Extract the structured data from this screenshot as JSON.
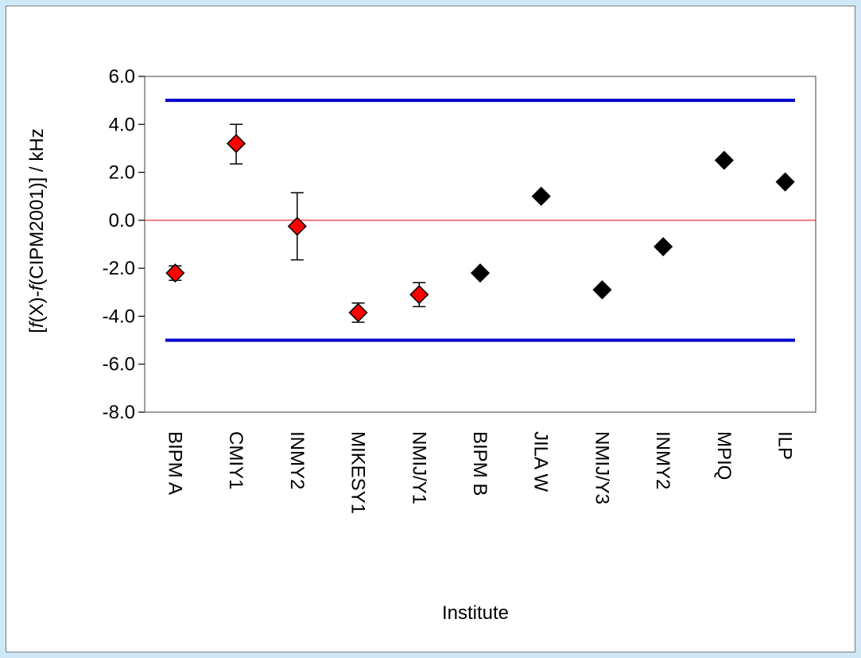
{
  "chart_data": {
    "type": "scatter",
    "title": "",
    "xlabel": "Institute",
    "ylabel": {
      "open": "[",
      "f1": "f",
      "mid": "(X)-",
      "f2": "f",
      "close": "(CIPM2001)] / kHz"
    },
    "ylim": [
      -8.0,
      6.0
    ],
    "yticks": [
      "6.0",
      "4.0",
      "2.0",
      "0.0",
      "-2.0",
      "-4.0",
      "-6.0",
      "-8.0"
    ],
    "ytick_values": [
      6,
      4,
      2,
      0,
      -2,
      -4,
      -6,
      -8
    ],
    "categories": [
      "BIPM A",
      "CMIY1",
      "INMY2",
      "MIKESY1",
      "NMIJ/Y1",
      "BIPM B",
      "JILA W",
      "NMIJ/Y3",
      "INMY2",
      "MPIQ",
      "ILP"
    ],
    "series": [
      {
        "color": "#ff0000",
        "marker": "diamond",
        "points": [
          {
            "category": 0,
            "y": -2.2,
            "err_low": 0.3,
            "err_high": 0.3
          },
          {
            "category": 1,
            "y": 3.2,
            "err_low": 0.85,
            "err_high": 0.8
          },
          {
            "category": 2,
            "y": -0.25,
            "err_low": 1.4,
            "err_high": 1.4
          },
          {
            "category": 3,
            "y": -3.85,
            "err_low": 0.4,
            "err_high": 0.4
          },
          {
            "category": 4,
            "y": -3.1,
            "err_low": 0.5,
            "err_high": 0.5
          }
        ]
      },
      {
        "color": "#000000",
        "marker": "diamond",
        "points": [
          {
            "category": 5,
            "y": -2.2
          },
          {
            "category": 6,
            "y": 1.0
          },
          {
            "category": 7,
            "y": -2.9
          },
          {
            "category": 8,
            "y": -1.1
          },
          {
            "category": 9,
            "y": 2.5
          },
          {
            "category": 10,
            "y": 1.6
          }
        ]
      }
    ],
    "reference_lines": [
      {
        "y": 5.0,
        "color": "#0000cc"
      },
      {
        "y": -5.0,
        "color": "#0000cc"
      },
      {
        "y": 0.0,
        "color": "#ff0000"
      }
    ],
    "grid": false,
    "legend": "none"
  }
}
